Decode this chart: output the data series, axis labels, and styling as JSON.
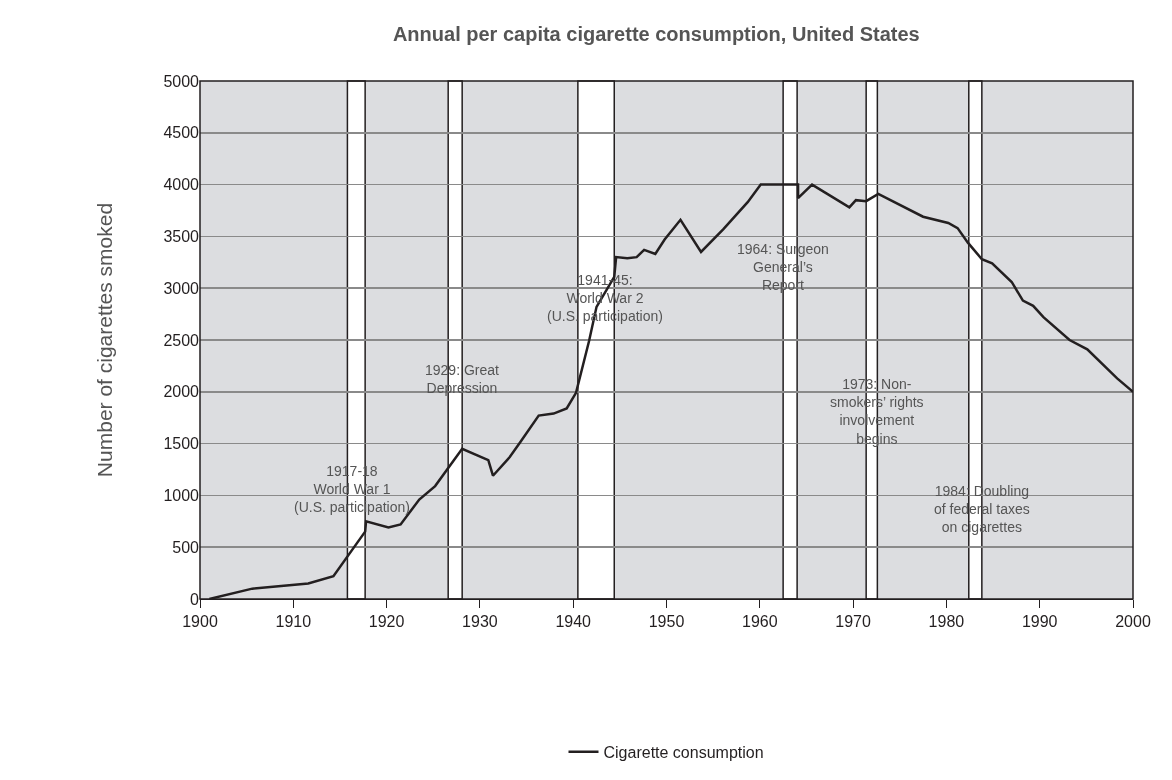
{
  "chart_data": {
    "type": "line",
    "title": "Annual per capita cigarette consumption, United States",
    "ylabel": "Number of cigarettes smoked",
    "xlim": [
      1900,
      2000
    ],
    "xticks": [
      1900,
      1910,
      1920,
      1930,
      1940,
      1950,
      1960,
      1970,
      1980,
      1990,
      2000
    ],
    "ylim": [
      0,
      5000
    ],
    "yticks": [
      0,
      500,
      1000,
      1500,
      2000,
      2500,
      3000,
      3500,
      4000,
      4500,
      5000
    ],
    "grid": "y",
    "legend": "bottom",
    "marker": "none",
    "line_style": "solid",
    "x": [
      1901.0,
      1905.6,
      1911.6,
      1914.3,
      1917.7,
      1917.8,
      1920.2,
      1921.5,
      1923.5,
      1925.2,
      1928.1,
      1930.9,
      1931.4,
      1933.2,
      1934.3,
      1936.3,
      1937.9,
      1939.3,
      1940.3,
      1941.7,
      1942.5,
      1944.4,
      1944.6,
      1945.8,
      1946.8,
      1947.6,
      1948.8,
      1949.8,
      1951.5,
      1953.7,
      1956.1,
      1958.7,
      1960.1,
      1964.1,
      1964.1,
      1965.6,
      1969.6,
      1970.3,
      1971.4,
      1972.7,
      1977.5,
      1980.2,
      1981.2,
      1982.3,
      1983.8,
      1984.9,
      1987.0,
      1988.2,
      1989.3,
      1990.4,
      1993.2,
      1995.1,
      1998.3,
      2000.0
    ],
    "series": [
      {
        "name": "Cigarette consumption",
        "color": "#231f20",
        "values": [
          0,
          100,
          150,
          220,
          650,
          750,
          690,
          720,
          960,
          1090,
          1450,
          1340,
          1190,
          1370,
          1510,
          1770,
          1790,
          1840,
          1990,
          2490,
          2820,
          3110,
          3300,
          3290,
          3300,
          3370,
          3330,
          3470,
          3660,
          3350,
          3570,
          3830,
          4000,
          4000,
          3870,
          4000,
          3780,
          3850,
          3840,
          3910,
          3690,
          3630,
          3580,
          3440,
          3280,
          3240,
          3060,
          2880,
          2830,
          2720,
          2500,
          2410,
          2130,
          2000
        ]
      }
    ],
    "bands": [
      {
        "axis": "x",
        "from": 1915.8,
        "to": 1917.7,
        "color": "#ffffff"
      },
      {
        "axis": "x",
        "from": 1926.6,
        "to": 1928.1,
        "color": "#ffffff"
      },
      {
        "axis": "x",
        "from": 1940.5,
        "to": 1944.4,
        "color": "#ffffff"
      },
      {
        "axis": "x",
        "from": 1962.5,
        "to": 1964.0,
        "color": "#ffffff"
      },
      {
        "axis": "x",
        "from": 1971.4,
        "to": 1972.6,
        "color": "#ffffff"
      },
      {
        "axis": "x",
        "from": 1982.4,
        "to": 1983.8,
        "color": "#ffffff"
      }
    ],
    "annotations": [
      {
        "text": "1917-18\nWorld War 1\n(U.S. participation)",
        "x": 1916.3,
        "y": 1060
      },
      {
        "text": "1929: Great\nDepression",
        "x": 1928.1,
        "y": 2120
      },
      {
        "text": "1941-45:\nWorld War 2\n(U.S. participation)",
        "x": 1943.4,
        "y": 2910
      },
      {
        "text": "1964: Surgeon\nGeneral’s\nReport",
        "x": 1962.5,
        "y": 3200
      },
      {
        "text": "1973: Non-\nsmokers’ rights\ninvolvement\nbegins",
        "x": 1972.6,
        "y": 1810
      },
      {
        "text": "1984: Doubling\nof federal taxes\non cigarettes",
        "x": 1983.8,
        "y": 870
      }
    ]
  }
}
